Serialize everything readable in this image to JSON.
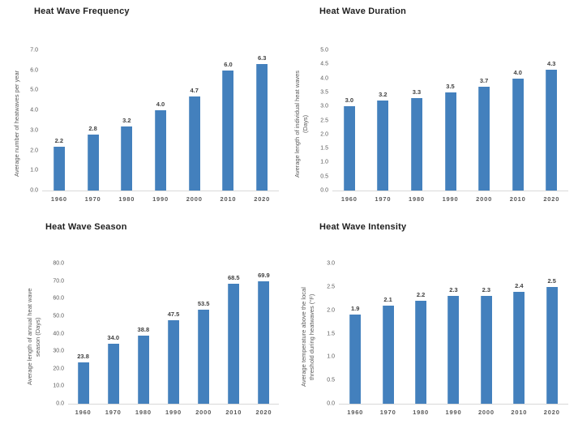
{
  "colors": {
    "bar": "#4380bd",
    "bar_edge_highlight": "#6c9cca",
    "axis_text": "#595959",
    "value_label_text": "#404040",
    "title_text": "#1f1f1f",
    "baseline": "#d9d9d9",
    "background": "#ffffff"
  },
  "chart_data": [
    {
      "type": "bar",
      "title": "Heat Wave Frequency",
      "xlabel": "",
      "ylabel": "Average number of heatwaves per year",
      "ylabel_lines": [
        "Average number of heatwaves per year"
      ],
      "categories": [
        "1960",
        "1970",
        "1980",
        "1990",
        "2000",
        "2010",
        "2020"
      ],
      "values": [
        2.2,
        2.8,
        3.2,
        4.0,
        4.7,
        6.0,
        6.3
      ],
      "data_labels": [
        "2.2",
        "2.8",
        "3.2",
        "4.0",
        "4.7",
        "6.0",
        "6.3"
      ],
      "ylim": [
        0,
        7.0
      ],
      "ytick_step": 1.0,
      "yticks_bottom_to_top": [
        "0.0",
        "1.0",
        "2.0",
        "3.0",
        "4.0",
        "5.0",
        "6.0",
        "7.0"
      ],
      "grid": false,
      "legend": null
    },
    {
      "type": "bar",
      "title": "Heat Wave Duration",
      "xlabel": "",
      "ylabel": "Average length of individual heat waves (Days)",
      "ylabel_lines": [
        "Average length of individual heat waves",
        "(Days)"
      ],
      "categories": [
        "1960",
        "1970",
        "1980",
        "1990",
        "2000",
        "2010",
        "2020"
      ],
      "values": [
        3.0,
        3.2,
        3.3,
        3.5,
        3.7,
        4.0,
        4.3
      ],
      "data_labels": [
        "3.0",
        "3.2",
        "3.3",
        "3.5",
        "3.7",
        "4.0",
        "4.3"
      ],
      "ylim": [
        0,
        5.0
      ],
      "ytick_step": 0.5,
      "yticks_bottom_to_top": [
        "0.0",
        "0.5",
        "1.0",
        "1.5",
        "2.0",
        "2.5",
        "3.0",
        "3.5",
        "4.0",
        "4.5",
        "5.0"
      ],
      "grid": false,
      "legend": null
    },
    {
      "type": "bar",
      "title": "Heat Wave Season",
      "xlabel": "",
      "ylabel": "Average length of annual heat wave season (Days)",
      "ylabel_lines": [
        "Average length of annual heat wave",
        "season (Days)"
      ],
      "categories": [
        "1960",
        "1970",
        "1980",
        "1990",
        "2000",
        "2010",
        "2020"
      ],
      "values": [
        23.8,
        34.0,
        38.8,
        47.5,
        53.5,
        68.5,
        69.9
      ],
      "data_labels": [
        "23.8",
        "34.0",
        "38.8",
        "47.5",
        "53.5",
        "68.5",
        "69.9"
      ],
      "ylim": [
        0,
        80.0
      ],
      "ytick_step": 10.0,
      "yticks_bottom_to_top": [
        "0.0",
        "10.0",
        "20.0",
        "30.0",
        "40.0",
        "50.0",
        "60.0",
        "70.0",
        "80.0"
      ],
      "grid": false,
      "legend": null
    },
    {
      "type": "bar",
      "title": "Heat Wave Intensity",
      "xlabel": "",
      "ylabel": "Average temperature above the local threshold during heatwaves (°F)",
      "ylabel_lines": [
        "Average temperature above the local",
        "threshold during heatwaves (°F)"
      ],
      "categories": [
        "1960",
        "1970",
        "1980",
        "1990",
        "2000",
        "2010",
        "2020"
      ],
      "values": [
        1.9,
        2.1,
        2.2,
        2.3,
        2.3,
        2.4,
        2.5
      ],
      "data_labels": [
        "1.9",
        "2.1",
        "2.2",
        "2.3",
        "2.3",
        "2.4",
        "2.5"
      ],
      "ylim": [
        0,
        3.0
      ],
      "ytick_step": 0.5,
      "yticks_bottom_to_top": [
        "0.0",
        "0.5",
        "1.0",
        "1.5",
        "2.0",
        "2.5",
        "3.0"
      ],
      "grid": false,
      "legend": null
    }
  ]
}
